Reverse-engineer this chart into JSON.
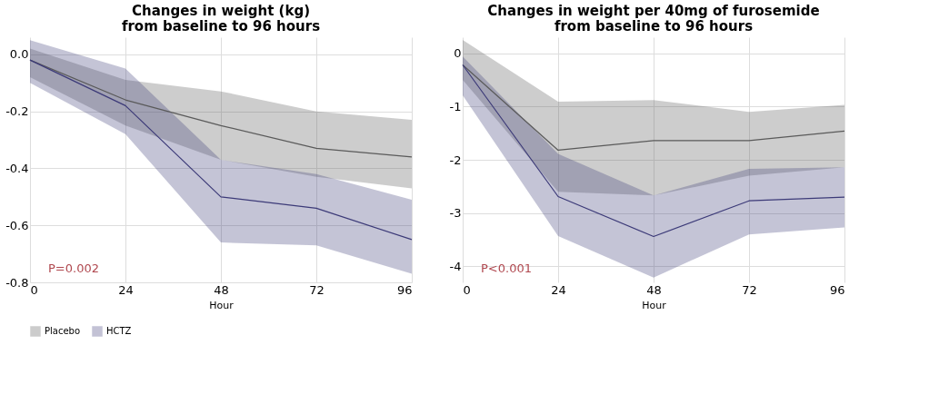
{
  "chart_data": [
    {
      "type": "line",
      "title": "Changes in weight (kg)\nfrom baseline to 96 hours",
      "xlabel": "Hour",
      "x": [
        0,
        24,
        48,
        72,
        96
      ],
      "xlim": [
        0,
        96
      ],
      "xticks": [
        0,
        24,
        48,
        72,
        96
      ],
      "ylim": [
        -0.8,
        0.06
      ],
      "yticks": [
        {
          "value": 0,
          "label": "0.0"
        },
        -0.2,
        -0.4,
        -0.6,
        -0.8
      ],
      "grid": true,
      "legend": "bottom",
      "annotations": [
        "P=0.002"
      ],
      "series": [
        {
          "name": "Placebo",
          "color": "#5a5a5a",
          "values": [
            -0.02,
            -0.16,
            -0.25,
            -0.33,
            -0.36
          ],
          "lower": [
            -0.08,
            -0.25,
            -0.37,
            -0.43,
            -0.47
          ],
          "upper": [
            0.02,
            -0.09,
            -0.13,
            -0.2,
            -0.23
          ]
        },
        {
          "name": "HCTZ",
          "color": "#3c3a78",
          "values": [
            -0.02,
            -0.18,
            -0.5,
            -0.54,
            -0.65
          ],
          "lower": [
            -0.1,
            -0.28,
            -0.66,
            -0.67,
            -0.77
          ],
          "upper": [
            0.05,
            -0.05,
            -0.37,
            -0.42,
            -0.51
          ]
        }
      ]
    },
    {
      "type": "line",
      "title": "Changes in weight per 40mg of furosemide\nfrom baseline to 96 hours",
      "xlabel": "Hour",
      "x": [
        0,
        24,
        48,
        72,
        96
      ],
      "xlim": [
        0,
        96
      ],
      "xticks": [
        0,
        24,
        48,
        72,
        96
      ],
      "ylim": [
        -4.3,
        0.3
      ],
      "yticks": [
        0,
        -1,
        -2,
        -3,
        -4
      ],
      "grid": true,
      "legend": "bottom",
      "annotations": [
        "P<0.001"
      ],
      "series": [
        {
          "name": "Placebo",
          "color": "#5a5a5a",
          "values": [
            -0.22,
            -1.82,
            -1.64,
            -1.64,
            -1.46
          ],
          "lower": [
            -0.5,
            -2.6,
            -2.67,
            -2.3,
            -2.14
          ],
          "upper": [
            0.25,
            -0.91,
            -0.88,
            -1.1,
            -0.97
          ]
        },
        {
          "name": "HCTZ",
          "color": "#3c3a78",
          "values": [
            -0.22,
            -2.69,
            -3.44,
            -2.77,
            -2.7
          ],
          "lower": [
            -0.79,
            -3.43,
            -4.21,
            -3.4,
            -3.27
          ],
          "upper": [
            -0.06,
            -1.89,
            -2.67,
            -2.17,
            -2.14
          ]
        }
      ]
    }
  ]
}
